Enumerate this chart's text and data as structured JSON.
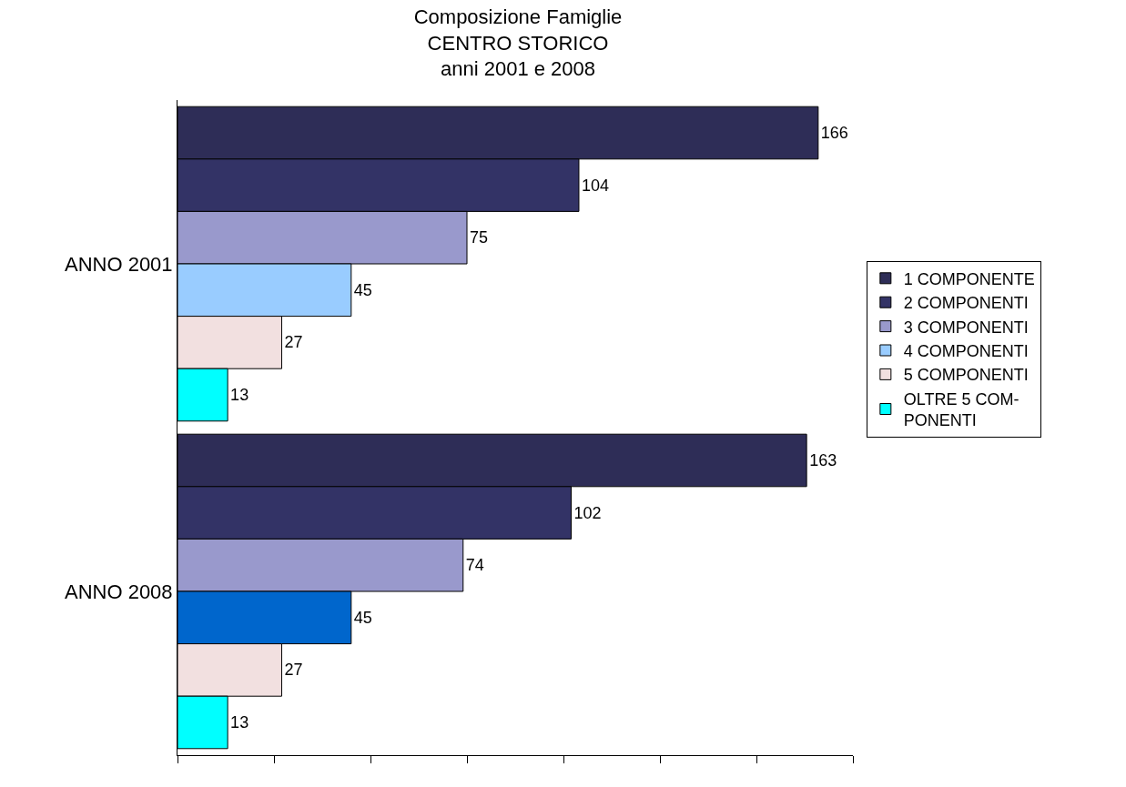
{
  "chart_data": {
    "type": "bar",
    "orientation": "horizontal",
    "title": "Composizione Famiglie\nCENTRO STORICO\nanni 2001 e 2008",
    "categories": [
      "ANNO 2001",
      "ANNO 2008"
    ],
    "series": [
      {
        "name": "1 COMPONENTE",
        "color": "#2e2d57",
        "values": [
          166,
          163
        ]
      },
      {
        "name": "2 COMPONENTI",
        "color": "#333366",
        "values": [
          104,
          102
        ]
      },
      {
        "name": "3 COMPONENTI",
        "color": "#9999cc",
        "values": [
          75,
          74
        ]
      },
      {
        "name": "4 COMPONENTI",
        "color": "#0066cc",
        "colors": [
          "#99ccff",
          "#0066cc"
        ],
        "values": [
          45,
          45
        ]
      },
      {
        "name": "5 COMPONENTI",
        "color": "#f2e0e0",
        "values": [
          27,
          27
        ]
      },
      {
        "name": "OLTRE 5 COM-\nPONENTI",
        "color": "#00ffff",
        "values": [
          13,
          13
        ]
      }
    ],
    "xlim": [
      0,
      175
    ],
    "xticks": [
      {
        "value": 0,
        "label": null
      },
      {
        "value": 25,
        "label": null
      },
      {
        "value": 50,
        "label": null
      },
      {
        "value": 75,
        "label": null
      },
      {
        "value": 100,
        "label": null
      },
      {
        "value": 125,
        "label": null
      },
      {
        "value": 150,
        "label": null
      },
      {
        "value": 175,
        "label": null
      }
    ],
    "tick_labels": "y",
    "data_labels": true,
    "legend": "right"
  }
}
